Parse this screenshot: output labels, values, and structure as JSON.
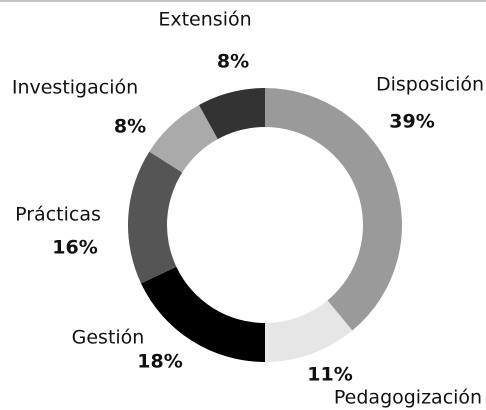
{
  "chart_data": {
    "type": "donut",
    "categories": [
      "Disposición",
      "Pedagogización",
      "Gestión",
      "Prácticas",
      "Investigación",
      "Extensión"
    ],
    "values": [
      39,
      11,
      18,
      16,
      8,
      8
    ],
    "value_labels": [
      "39%",
      "11%",
      "18%",
      "16%",
      "8%",
      "8%"
    ],
    "colors": [
      "#9a9a9a",
      "#e6e6e6",
      "#000000",
      "#555555",
      "#aaaaaa",
      "#333333"
    ]
  }
}
